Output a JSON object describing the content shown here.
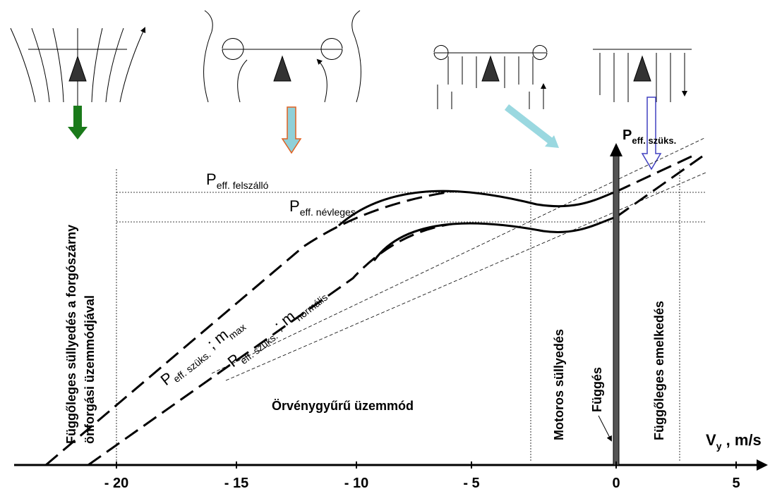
{
  "axis": {
    "x_label": {
      "main": "V",
      "sub": "y",
      "rest": " , m/s"
    },
    "ticks": [
      "- 20",
      "- 15",
      "- 10",
      "- 5",
      "0",
      "5"
    ]
  },
  "y_label": {
    "main": "P",
    "sub": "eff. szüks."
  },
  "levels": [
    {
      "main": "P",
      "sub": "eff. felszálló"
    },
    {
      "main": "P",
      "sub": "eff. névleges"
    }
  ],
  "curves": [
    {
      "main": "P",
      "sub": "eff. szüks.",
      "mid": " ; m",
      "sub2": "max"
    },
    {
      "main": "P",
      "sub": "eff. szüks.",
      "mid": " ; m",
      "sub2": "normális"
    }
  ],
  "regions": [
    "Függőleges süllyedés a forgószárny",
    "önforgási üzemmódjával",
    "Örvénygyűrű üzemmód",
    "Motoros süllyedés",
    "Függés",
    "Függőleges emelkedés"
  ]
}
